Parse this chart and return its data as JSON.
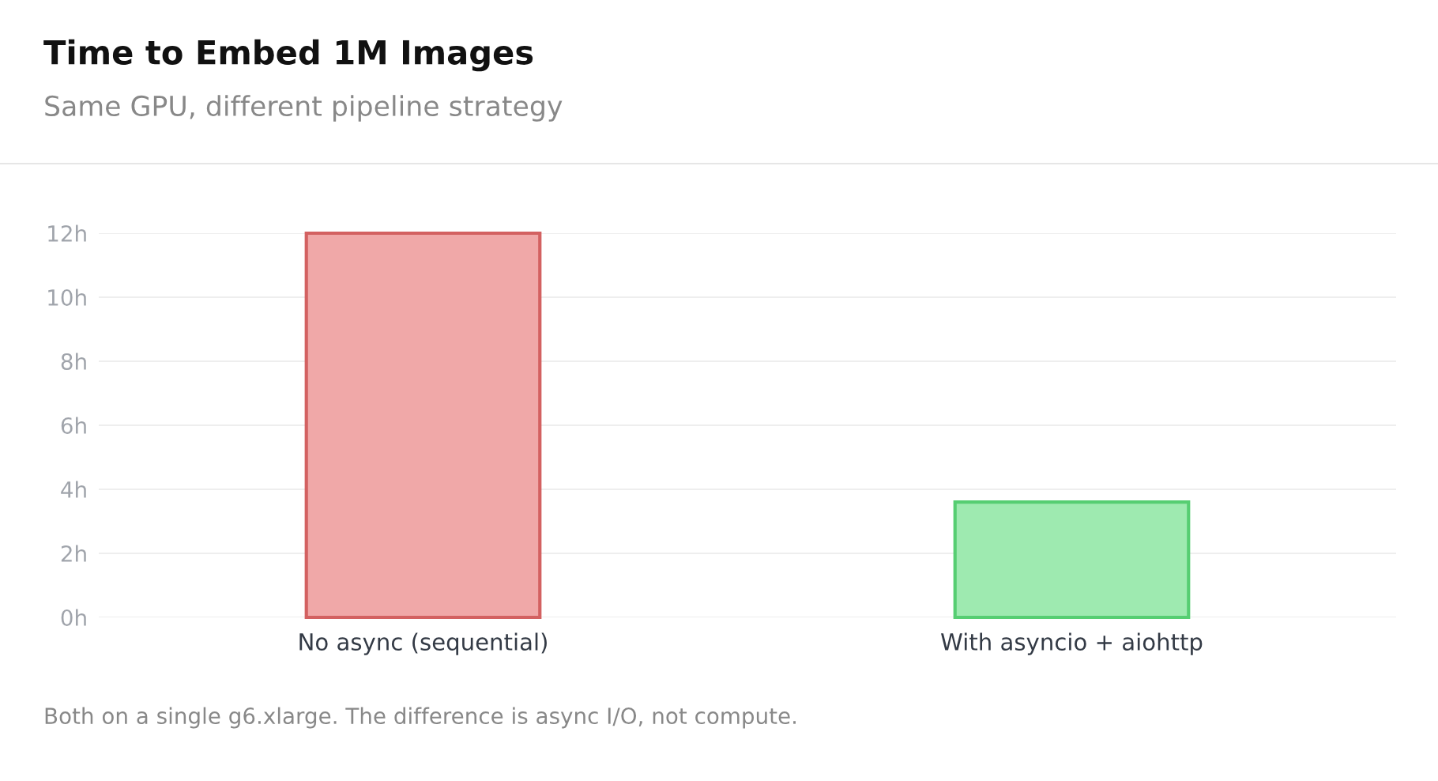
{
  "chart_data": {
    "type": "bar",
    "title": "Time to Embed 1M Images",
    "subtitle": "Same GPU, different pipeline strategy",
    "categories": [
      "No async (sequential)",
      "With asyncio + aiohttp"
    ],
    "values": [
      12,
      3.6
    ],
    "colors": [
      "#f0a8a8",
      "#9eeab0"
    ],
    "ylim": [
      0,
      12
    ],
    "yticks": [
      {
        "value": 0,
        "label": "0h"
      },
      {
        "value": 2,
        "label": "2h"
      },
      {
        "value": 4,
        "label": "4h"
      },
      {
        "value": 6,
        "label": "6h"
      },
      {
        "value": 8,
        "label": "8h"
      },
      {
        "value": 10,
        "label": "10h"
      },
      {
        "value": 12,
        "label": "12h"
      }
    ],
    "grid": "y",
    "annotations": [
      "Both on a single g6.xlarge. The difference is async I/O, not compute."
    ]
  }
}
